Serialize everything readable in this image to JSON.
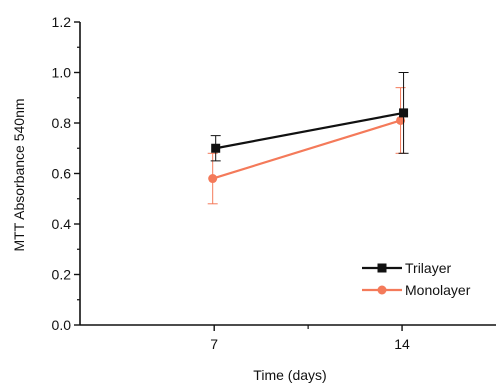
{
  "chart_data": {
    "type": "line",
    "xlabel": "Time (days)",
    "ylabel": "MTT Absorbance 540nm",
    "x": [
      7,
      14
    ],
    "x_tick_labels": [
      "7",
      "14"
    ],
    "xlim": [
      2,
      17.5
    ],
    "ylim": [
      0.0,
      1.2
    ],
    "y_ticks": [
      0.0,
      0.2,
      0.4,
      0.6,
      0.8,
      1.0,
      1.2
    ],
    "y_tick_labels": [
      "0.0",
      "0.2",
      "0.4",
      "0.6",
      "0.8",
      "1.0",
      "1.2"
    ],
    "legend_position": "bottom-right",
    "grid": false,
    "series": [
      {
        "name": "Trilayer",
        "values": [
          0.7,
          0.84
        ],
        "error": [
          0.05,
          0.16
        ],
        "color": "#111111",
        "marker": "square"
      },
      {
        "name": "Monolayer",
        "values": [
          0.58,
          0.81
        ],
        "error": [
          0.1,
          0.13
        ],
        "color": "#f47a5a",
        "marker": "circle"
      }
    ]
  }
}
